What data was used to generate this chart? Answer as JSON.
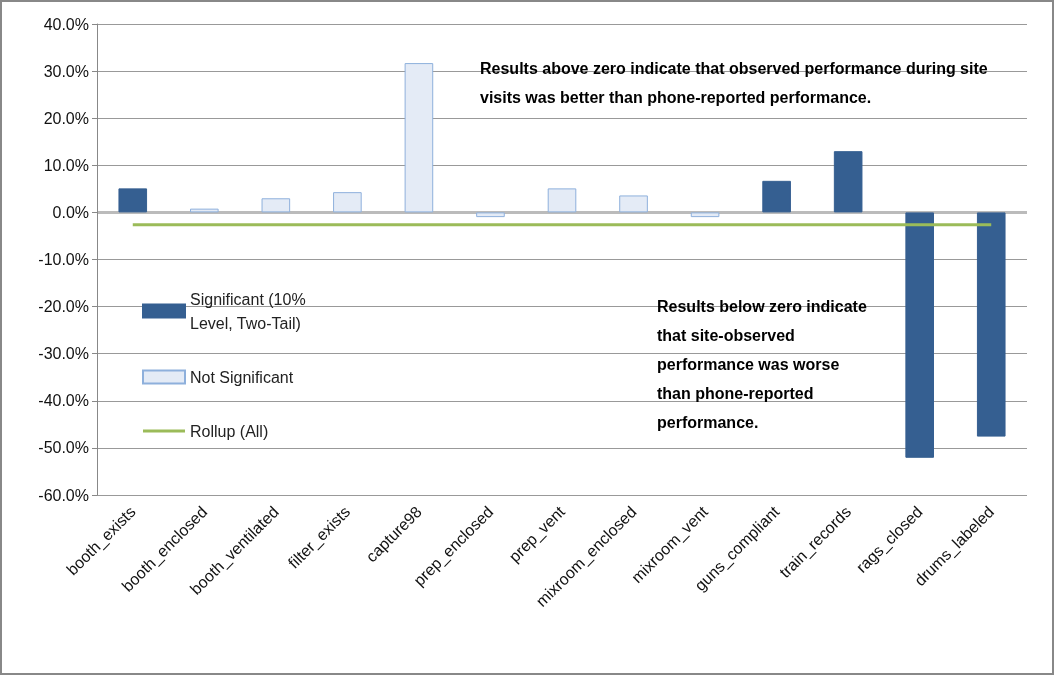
{
  "chart_data": {
    "type": "bar",
    "stacked": true,
    "categories": [
      "booth_exists",
      "booth_enclosed",
      "booth_ventilated",
      "filter_exists",
      "capture98",
      "prep_enclosed",
      "prep_vent",
      "mixroom_enclosed",
      "mixroom_vent",
      "guns_compliant",
      "train_records",
      "rags_closed",
      "drums_labeled"
    ],
    "series": [
      {
        "name": "Significant (10% Level, Two-Tail)",
        "color": "#355f91",
        "values": [
          5.1,
          null,
          null,
          null,
          null,
          null,
          null,
          null,
          null,
          6.7,
          13.0,
          -52.1,
          -47.6
        ]
      },
      {
        "name": "Not Significant",
        "color": "#e4ebf6",
        "values": [
          null,
          0.8,
          3.0,
          4.3,
          31.7,
          -1.0,
          5.1,
          3.6,
          -1.0,
          null,
          null,
          null,
          null
        ]
      },
      {
        "name": "Rollup (All)",
        "type": "line",
        "color": "#9bbb59",
        "values": [
          -2.6,
          -2.6,
          -2.6,
          -2.6,
          -2.6,
          -2.6,
          -2.6,
          -2.6,
          -2.6,
          -2.6,
          -2.6,
          -2.6,
          -2.6
        ]
      }
    ],
    "ylim": [
      -60,
      40
    ],
    "yticks": [
      {
        "value": -60,
        "label": "-60.0%"
      },
      {
        "value": -50,
        "label": "-50.0%"
      },
      {
        "value": -40,
        "label": "-40.0%"
      },
      {
        "value": -30,
        "label": "-30.0%"
      },
      {
        "value": -20,
        "label": "-20.0%"
      },
      {
        "value": -10,
        "label": "-10.0%"
      },
      {
        "value": 0,
        "label": "0.0%"
      },
      {
        "value": 10,
        "label": "10.0%"
      },
      {
        "value": 20,
        "label": "20.0%"
      },
      {
        "value": 30,
        "label": "30.0%"
      },
      {
        "value": 40,
        "label": "40.0%"
      }
    ],
    "grid": "y",
    "legend": "left",
    "annotations": [
      "Results above zero indicate that observed performance during site visits was better than phone-reported performance.",
      "Results below zero indicate that site-observed performance was worse than phone-reported performance."
    ]
  }
}
